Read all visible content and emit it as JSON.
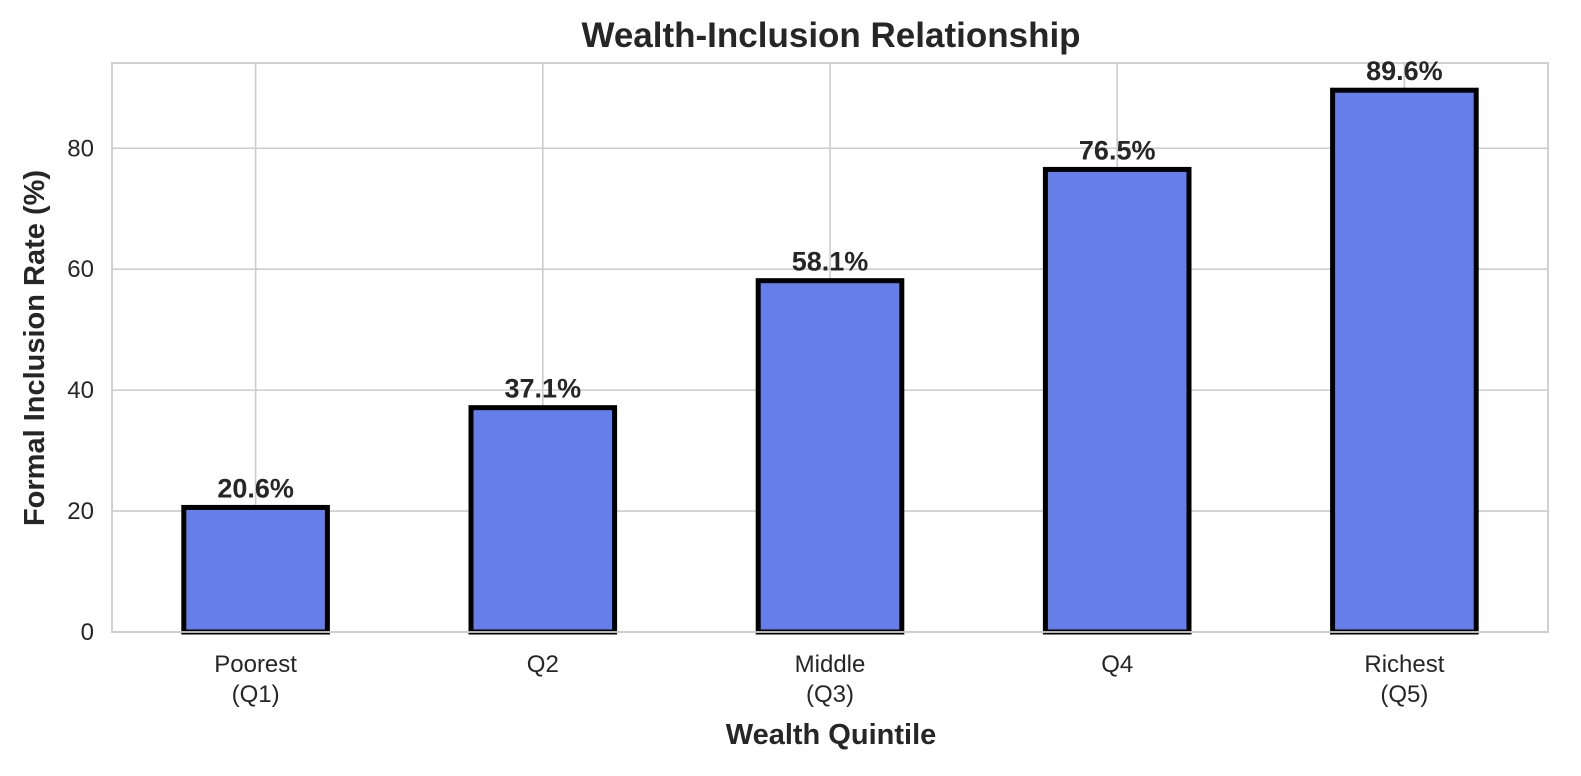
{
  "chart_data": {
    "type": "bar",
    "title": "Wealth-Inclusion Relationship",
    "xlabel": "Wealth Quintile",
    "ylabel": "Formal Inclusion Rate (%)",
    "categories": [
      [
        "Poorest",
        "(Q1)"
      ],
      [
        "Q2"
      ],
      [
        "Middle",
        "(Q3)"
      ],
      [
        "Q4"
      ],
      [
        "Richest",
        "(Q5)"
      ]
    ],
    "values": [
      20.6,
      37.1,
      58.1,
      76.5,
      89.6
    ],
    "value_labels": [
      "20.6%",
      "37.1%",
      "58.1%",
      "76.5%",
      "89.6%"
    ],
    "ylim": [
      0,
      94.1
    ],
    "yticks": [
      0,
      20,
      40,
      60,
      80
    ],
    "grid": true,
    "legend": "none",
    "bar_color": "#667eea",
    "bar_edge_color": "#000000",
    "grid_color": "#cccccc"
  }
}
